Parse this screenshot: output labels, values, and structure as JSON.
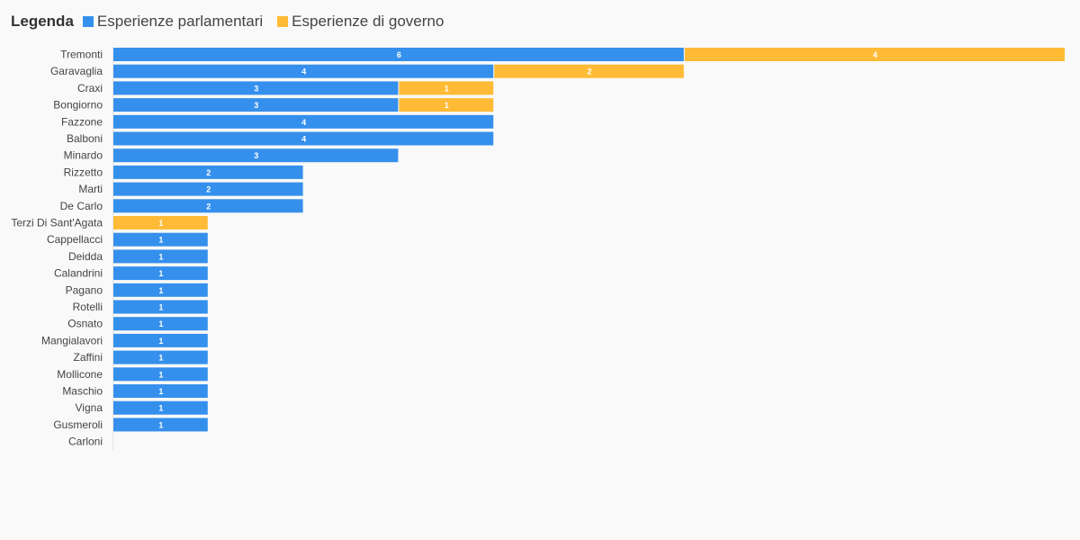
{
  "legend": {
    "title": "Legenda"
  },
  "colors": {
    "parlamentari": "#3590ed",
    "governo": "#ffbb36"
  },
  "chart_data": {
    "type": "bar",
    "orientation": "horizontal",
    "stacked": true,
    "categories": [
      "Tremonti",
      "Garavaglia",
      "Craxi",
      "Bongiorno",
      "Fazzone",
      "Balboni",
      "Minardo",
      "Rizzetto",
      "Marti",
      "De Carlo",
      "Terzi Di Sant'Agata",
      "Cappellacci",
      "Deidda",
      "Calandrini",
      "Pagano",
      "Rotelli",
      "Osnato",
      "Mangialavori",
      "Zaffini",
      "Mollicone",
      "Maschio",
      "Vigna",
      "Gusmeroli",
      "Carloni"
    ],
    "series": [
      {
        "name": "Esperienze parlamentari",
        "values": [
          6,
          4,
          3,
          3,
          4,
          4,
          3,
          2,
          2,
          2,
          0,
          1,
          1,
          1,
          1,
          1,
          1,
          1,
          1,
          1,
          1,
          1,
          1,
          0
        ]
      },
      {
        "name": "Esperienze di governo",
        "values": [
          4,
          2,
          1,
          1,
          0,
          0,
          0,
          0,
          0,
          0,
          1,
          0,
          0,
          0,
          0,
          0,
          0,
          0,
          0,
          0,
          0,
          0,
          0,
          0
        ]
      }
    ],
    "xlim": [
      0,
      10
    ],
    "grid": false,
    "legend_position": "top-left",
    "title": "",
    "xlabel": "",
    "ylabel": ""
  }
}
